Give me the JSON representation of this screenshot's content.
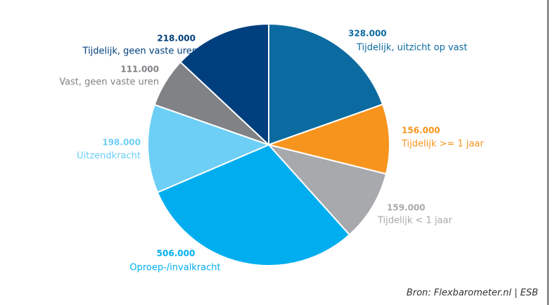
{
  "chart_data": {
    "type": "pie",
    "categories": [
      "Tijdelijk, uitzicht op vast",
      "Tijdelijk >= 1 jaar",
      "Tijdelijk < 1 jaar",
      "Oproep-/invalkracht",
      "Uitzendkracht",
      "Vast, geen vaste uren",
      "Tijdelijk, geen vaste uren"
    ],
    "values": [
      328000,
      156000,
      159000,
      506000,
      198000,
      111000,
      218000
    ],
    "value_labels": [
      "328.000",
      "156.000",
      "159.000",
      "506.000",
      "198.000",
      "111.000",
      "218.000"
    ],
    "colors": [
      "#0b6a9f",
      "#f7941d",
      "#a7a9ac",
      "#00aeef",
      "#6dcff6",
      "#808285",
      "#003f7d"
    ],
    "source": "Bron: Flexbarometer.nl | ESB"
  }
}
